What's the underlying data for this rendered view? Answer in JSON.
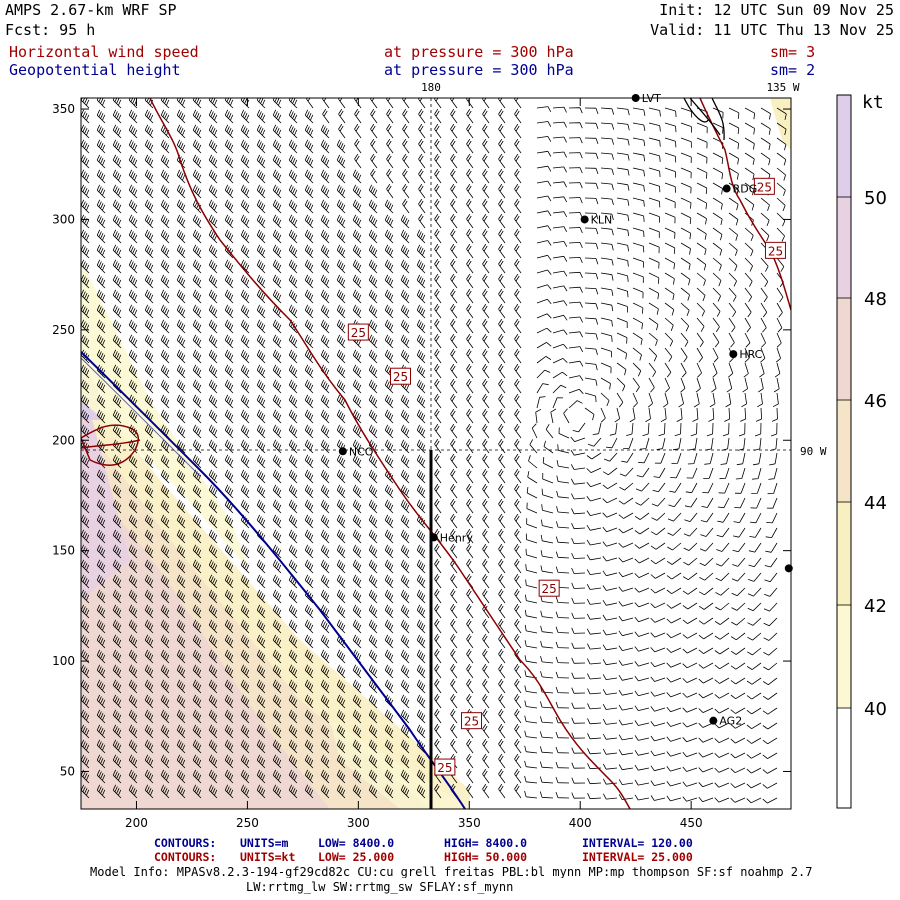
{
  "header": {
    "model": "AMPS 2.67-km WRF SP",
    "forecast": "Fcst:    95 h",
    "init": "Init: 12 UTC Sun 09 Nov 25",
    "valid": "Valid: 11 UTC Thu 13 Nov 25",
    "field1": {
      "name": "Horizontal wind speed",
      "level": "at pressure =  300 hPa",
      "sm": "sm= 3"
    },
    "field2": {
      "name": "Geopotential height",
      "level": "at pressure =  300 hPa",
      "sm": "sm= 2"
    }
  },
  "map": {
    "x_ticks": [
      "200",
      "250",
      "300",
      "350",
      "400",
      "450"
    ],
    "y_ticks": [
      "50",
      "100",
      "150",
      "200",
      "250",
      "300",
      "350"
    ],
    "x_range": [
      175,
      495
    ],
    "y_range": [
      33,
      355
    ],
    "meridian_labels": {
      "top_180": "180",
      "top_135w": "135 W",
      "right_90w": "90 W"
    },
    "stations": [
      {
        "name": "LVT",
        "x": 425,
        "y": 355
      },
      {
        "name": "RDG",
        "x": 466,
        "y": 314
      },
      {
        "name": "KLN",
        "x": 402,
        "y": 300
      },
      {
        "name": "HRC",
        "x": 469,
        "y": 239
      },
      {
        "name": "NCO",
        "x": 293,
        "y": 195
      },
      {
        "name": "Henry",
        "x": 334,
        "y": 156
      },
      {
        "name": "AG2",
        "x": 460,
        "y": 73
      },
      {
        "name": "",
        "x": 494,
        "y": 142
      }
    ],
    "contour_label": "25",
    "wind_contour_labels": [
      {
        "x": 300,
        "y": 249
      },
      {
        "x": 319,
        "y": 229
      },
      {
        "x": 483,
        "y": 315
      },
      {
        "x": 488,
        "y": 286
      },
      {
        "x": 386,
        "y": 133
      },
      {
        "x": 351,
        "y": 73
      },
      {
        "x": 339,
        "y": 52
      }
    ],
    "colors": {
      "wind_contour": "#8b0000",
      "height_contour": "#000090",
      "barb": "#000000"
    }
  },
  "colorbar": {
    "unit": "kt",
    "labels": [
      "40",
      "42",
      "44",
      "46",
      "48",
      "50"
    ],
    "colors": [
      "#ffffff",
      "#fbf8d2",
      "#f9f0c2",
      "#f5e4c8",
      "#f0d8d2",
      "#e8d2e2",
      "#deceea"
    ]
  },
  "footer": {
    "contours1": {
      "prefix": "CONTOURS:",
      "units": "UNITS=m",
      "low": "LOW=  8400.0",
      "high": "HIGH=  8400.0",
      "interval": "INTERVAL=   120.00"
    },
    "contours2": {
      "prefix": "CONTOURS:",
      "units": "UNITS=kt",
      "low": "LOW=  25.000",
      "high": "HIGH=  50.000",
      "interval": "INTERVAL=   25.000"
    },
    "model_info": "Model Info: MPASv8.2.3-194-gf29cd82c CU:cu_grell_freitas PBL:bl_mynn MP:mp_thompson SF:sf_noahmp 2.7",
    "model_info2": "LW:rrtmg_lw SW:rrtmg_sw SFLAY:sf_mynn"
  }
}
